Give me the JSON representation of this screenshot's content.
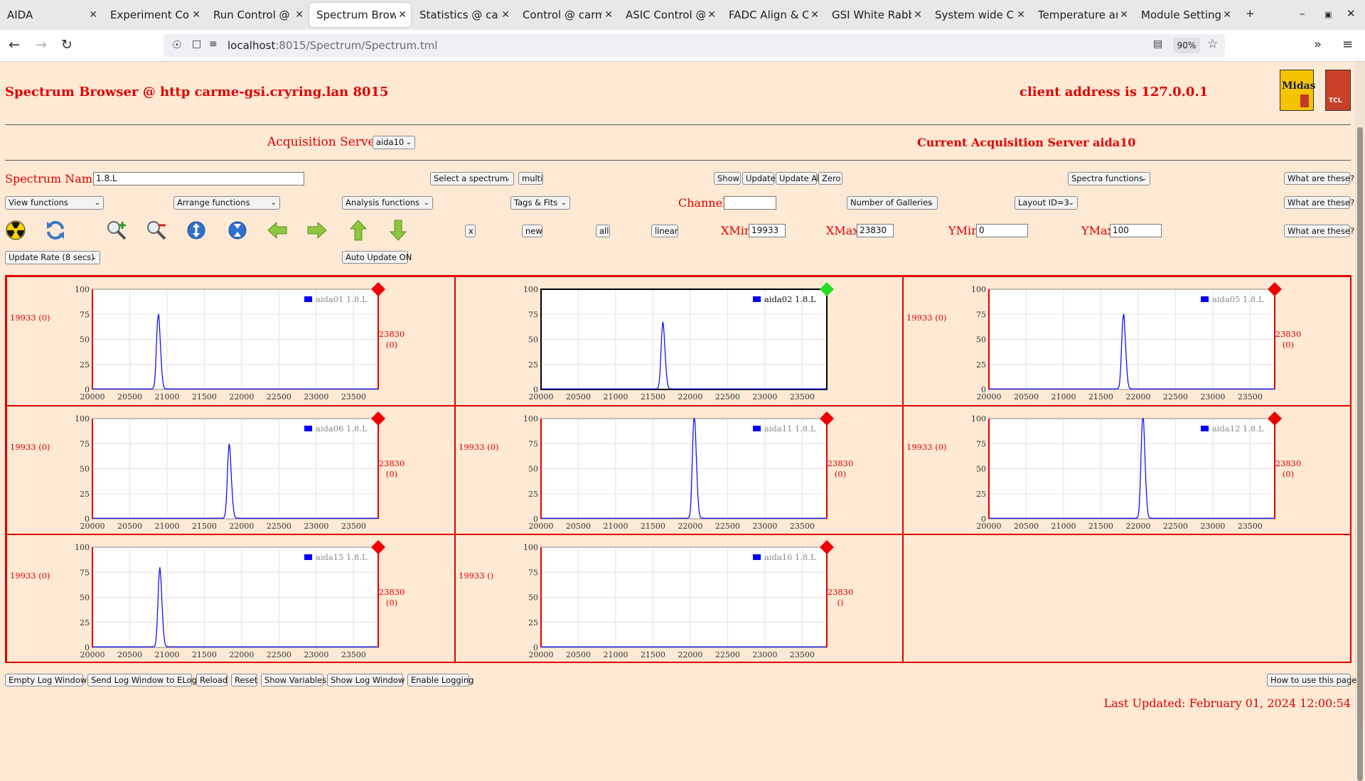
{
  "browser": {
    "tabs": [
      {
        "label": "AIDA",
        "active": false
      },
      {
        "label": "Experiment Cont",
        "active": false
      },
      {
        "label": "Run Control @ c",
        "active": false
      },
      {
        "label": "Spectrum Brows",
        "active": true
      },
      {
        "label": "Statistics @ carr",
        "active": false
      },
      {
        "label": "Control @ carme",
        "active": false
      },
      {
        "label": "ASIC Control @ c",
        "active": false
      },
      {
        "label": "FADC Align & Co",
        "active": false
      },
      {
        "label": "GSI White Rabbit",
        "active": false
      },
      {
        "label": "System wide Che",
        "active": false
      },
      {
        "label": "Temperature and",
        "active": false
      },
      {
        "label": "Module Settings",
        "active": false
      }
    ],
    "new_tab": "+",
    "url_host": "localhost",
    "url_rest": ":8015/Spectrum/Spectrum.tml",
    "zoom": "90%"
  },
  "header": {
    "title": "Spectrum Browser @ http carme-gsi.cryring.lan 8015",
    "client": "client address is 127.0.0.1",
    "logo_midas": "Midas",
    "logo_tcl": "TCL"
  },
  "servers": {
    "label": "Acquisition Servers",
    "selected": "aida10",
    "current": "Current Acquisition Server aida10"
  },
  "controls": {
    "spectrum_name_label": "Spectrum Name:",
    "spectrum_name_value": "1.8.L",
    "select_spectrum": "Select a spectrum",
    "multi": "multi",
    "show": "Show",
    "update": "Update",
    "update_all": "Update All",
    "zero": "Zero",
    "spectra_functions": "Spectra functions",
    "what1": "What are these?",
    "view_functions": "View functions",
    "arrange_functions": "Arrange functions",
    "analysis_functions": "Analysis functions",
    "tags_fits": "Tags & Fits",
    "channel_label": "Channel:",
    "channel_value": "",
    "num_galleries": "Number of Galleries",
    "layout": "Layout ID=3",
    "what2": "What are these?",
    "x_btn": "x",
    "new_btn": "new",
    "all_btn": "all",
    "linear_btn": "linear",
    "xmin_label": "XMin",
    "xmin_value": "19933",
    "xmax_label": "XMax",
    "xmax_value": "23830",
    "ymin_label": "YMin",
    "ymin_value": "0",
    "ymax_label": "YMax",
    "ymax_value": "100",
    "what3": "What are these?",
    "update_rate": "Update Rate (8 secs)",
    "auto_update": "Auto Update ON"
  },
  "colors": {
    "accent": "#e00000",
    "page_bg": "#fde9d4",
    "series": "#0000ff",
    "status_ok": "#22dd22",
    "status_bad": "#ee0000"
  },
  "chart_data": [
    {
      "type": "line",
      "legend": "aida01 1.8.L",
      "left_label": "19933 (0)",
      "right_label_1": "23830",
      "right_label_2": "(0)",
      "status": "red",
      "highlighted": false,
      "xlim": [
        20000,
        23830
      ],
      "ylim": [
        0,
        100
      ],
      "xticks": [
        "20000",
        "20500",
        "21000",
        "21500",
        "22000",
        "22500",
        "23000",
        "23500"
      ],
      "yticks": [
        "0",
        "25",
        "50",
        "75",
        "100"
      ],
      "peak": {
        "x": 20880,
        "y": 72
      }
    },
    {
      "type": "line",
      "legend": "aida02 1.8.L",
      "left_label": "",
      "right_label_1": "",
      "right_label_2": "",
      "status": "green",
      "highlighted": true,
      "xlim": [
        20000,
        23830
      ],
      "ylim": [
        0,
        100
      ],
      "xticks": [
        "20000",
        "20500",
        "21000",
        "21500",
        "22000",
        "22500",
        "23000",
        "23500"
      ],
      "yticks": [
        "0",
        "25",
        "50",
        "75",
        "100"
      ],
      "peak": {
        "x": 21630,
        "y": 63
      }
    },
    {
      "type": "line",
      "legend": "aida05 1.8.L",
      "left_label": "19933 (0)",
      "right_label_1": "23830",
      "right_label_2": "(0)",
      "status": "red",
      "highlighted": false,
      "xlim": [
        20000,
        23830
      ],
      "ylim": [
        0,
        100
      ],
      "xticks": [
        "20000",
        "20500",
        "21000",
        "21500",
        "22000",
        "22500",
        "23000",
        "23500"
      ],
      "yticks": [
        "0",
        "25",
        "50",
        "75",
        "100"
      ],
      "peak": {
        "x": 21800,
        "y": 72
      }
    },
    {
      "type": "line",
      "legend": "aida06 1.8.L",
      "left_label": "19933 (0)",
      "right_label_1": "23830",
      "right_label_2": "(0)",
      "status": "red",
      "highlighted": false,
      "xlim": [
        20000,
        23830
      ],
      "ylim": [
        0,
        100
      ],
      "xticks": [
        "20000",
        "20500",
        "21000",
        "21500",
        "22000",
        "22500",
        "23000",
        "23500"
      ],
      "yticks": [
        "0",
        "25",
        "50",
        "75",
        "100"
      ],
      "peak": {
        "x": 21830,
        "y": 70
      }
    },
    {
      "type": "line",
      "legend": "aida11 1.8.L",
      "left_label": "19933 (0)",
      "right_label_1": "23830",
      "right_label_2": "(0)",
      "status": "red",
      "highlighted": false,
      "xlim": [
        20000,
        23830
      ],
      "ylim": [
        0,
        100
      ],
      "xticks": [
        "20000",
        "20500",
        "21000",
        "21500",
        "22000",
        "22500",
        "23000",
        "23500"
      ],
      "yticks": [
        "0",
        "25",
        "50",
        "75",
        "100"
      ],
      "peak": {
        "x": 22050,
        "y": 100
      }
    },
    {
      "type": "line",
      "legend": "aida12 1.8.L",
      "left_label": "19933 (0)",
      "right_label_1": "23830",
      "right_label_2": "(0)",
      "status": "red",
      "highlighted": false,
      "xlim": [
        20000,
        23830
      ],
      "ylim": [
        0,
        100
      ],
      "xticks": [
        "20000",
        "20500",
        "21000",
        "21500",
        "22000",
        "22500",
        "23000",
        "23500"
      ],
      "yticks": [
        "0",
        "25",
        "50",
        "75",
        "100"
      ],
      "peak": {
        "x": 22060,
        "y": 100
      }
    },
    {
      "type": "line",
      "legend": "aida15 1.8.L",
      "left_label": "19933 (0)",
      "right_label_1": "23830",
      "right_label_2": "(0)",
      "status": "red",
      "highlighted": false,
      "xlim": [
        20000,
        23830
      ],
      "ylim": [
        0,
        100
      ],
      "xticks": [
        "20000",
        "20500",
        "21000",
        "21500",
        "22000",
        "22500",
        "23000",
        "23500"
      ],
      "yticks": [
        "0",
        "25",
        "50",
        "75",
        "100"
      ],
      "peak": {
        "x": 20900,
        "y": 75
      }
    },
    {
      "type": "line",
      "legend": "aida16 1.8.L",
      "left_label": "19933 ()",
      "right_label_1": "23830",
      "right_label_2": "()",
      "status": "red",
      "highlighted": false,
      "xlim": [
        20000,
        23830
      ],
      "ylim": [
        0,
        100
      ],
      "xticks": [
        "20000",
        "20500",
        "21000",
        "21500",
        "22000",
        "22500",
        "23000",
        "23500"
      ],
      "yticks": [
        "0",
        "25",
        "50",
        "75",
        "100"
      ],
      "peak": null
    }
  ],
  "footer": {
    "empty_log": "Empty Log Window",
    "send_log": "Send Log Window to ELog",
    "reload": "Reload",
    "reset": "Reset",
    "show_vars": "Show Variables",
    "show_log": "Show Log Window",
    "enable_log": "Enable Logging",
    "howto": "How to use this page",
    "last_updated": "Last Updated: February 01, 2024 12:00:54"
  }
}
